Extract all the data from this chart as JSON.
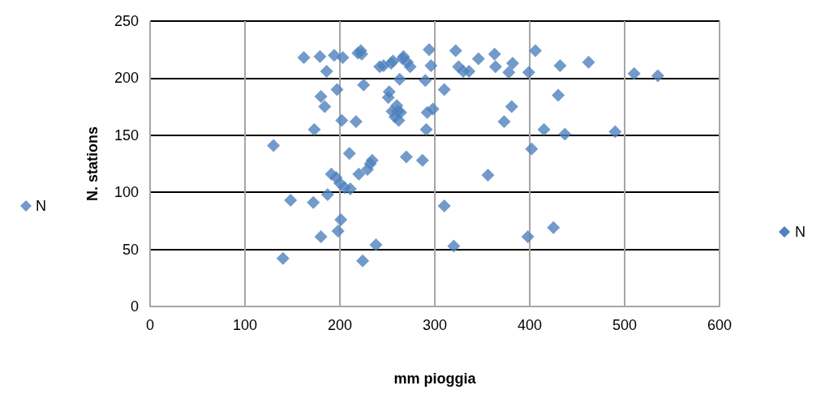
{
  "chart_data": {
    "type": "scatter",
    "xlabel": "mm pioggia",
    "ylabel": "N. stations",
    "xlim": [
      0,
      600
    ],
    "xticks": [
      0,
      100,
      200,
      300,
      400,
      500,
      600
    ],
    "ylim": [
      0,
      250
    ],
    "yticks": [
      0,
      50,
      100,
      150,
      200,
      250
    ],
    "grid": true,
    "legend": [
      "left",
      "right"
    ],
    "marker": "diamond",
    "series": [
      {
        "name": "N",
        "color": "#4f81bd",
        "x": [
          130,
          140,
          148,
          162,
          172,
          173,
          179,
          180,
          180,
          184,
          186,
          187,
          191,
          194,
          196,
          197,
          198,
          200,
          201,
          202,
          203,
          205,
          210,
          211,
          217,
          219,
          220,
          222,
          223,
          224,
          225,
          229,
          232,
          234,
          238,
          242,
          246,
          251,
          252,
          254,
          255,
          256,
          258,
          260,
          261,
          262,
          263,
          264,
          266,
          267,
          270,
          271,
          274,
          287,
          290,
          291,
          292,
          294,
          296,
          298,
          310,
          310,
          320,
          322,
          325,
          330,
          336,
          346,
          356,
          363,
          364,
          373,
          378,
          381,
          382,
          398,
          399,
          402,
          406,
          415,
          425,
          430,
          432,
          437,
          462,
          490,
          510,
          535
        ],
        "values": [
          141,
          42,
          93,
          218,
          91,
          155,
          219,
          61,
          184,
          175,
          206,
          98,
          116,
          220,
          113,
          190,
          66,
          108,
          76,
          163,
          218,
          104,
          134,
          103,
          162,
          222,
          116,
          224,
          221,
          40,
          194,
          120,
          125,
          128,
          54,
          210,
          211,
          183,
          188,
          213,
          171,
          215,
          166,
          176,
          171,
          163,
          199,
          170,
          217,
          219,
          131,
          214,
          210,
          128,
          198,
          155,
          170,
          225,
          211,
          173,
          88,
          190,
          53,
          224,
          210,
          206,
          206,
          217,
          115,
          221,
          210,
          162,
          205,
          175,
          213,
          61,
          205,
          138,
          224,
          155,
          69,
          185,
          211,
          151,
          214,
          153,
          204,
          202
        ]
      }
    ]
  }
}
